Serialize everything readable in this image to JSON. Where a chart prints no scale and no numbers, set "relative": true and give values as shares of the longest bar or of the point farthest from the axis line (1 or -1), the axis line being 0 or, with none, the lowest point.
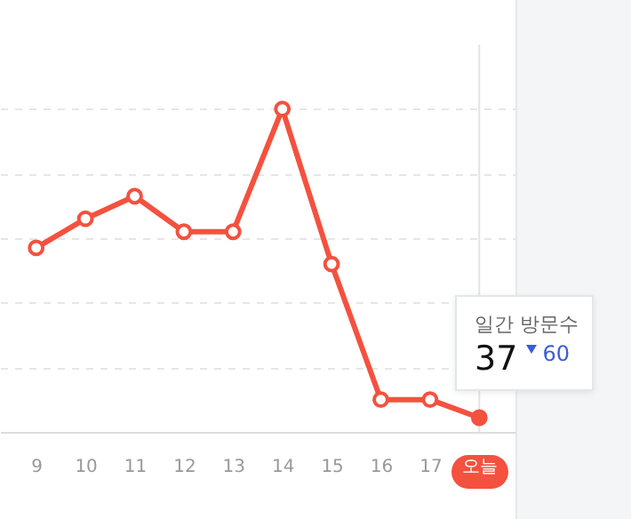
{
  "chart_data": {
    "type": "line",
    "categories": [
      "9",
      "10",
      "11",
      "12",
      "13",
      "14",
      "15",
      "16",
      "17",
      "오늘"
    ],
    "series": [
      {
        "color": "#f4513f",
        "values": [
          0.57,
          0.66,
          0.73,
          0.62,
          0.62,
          1,
          0.52,
          0.1,
          0.1,
          0.044
        ]
      }
    ],
    "relative": true,
    "grid": "y",
    "marker": "circle",
    "line_style": "solid",
    "ref_lines": [
      {
        "axis": "x",
        "value": "오늘",
        "color": "#e1e3e8"
      }
    ],
    "annotations": [
      "일간 방문수",
      "37",
      "60"
    ]
  }
}
